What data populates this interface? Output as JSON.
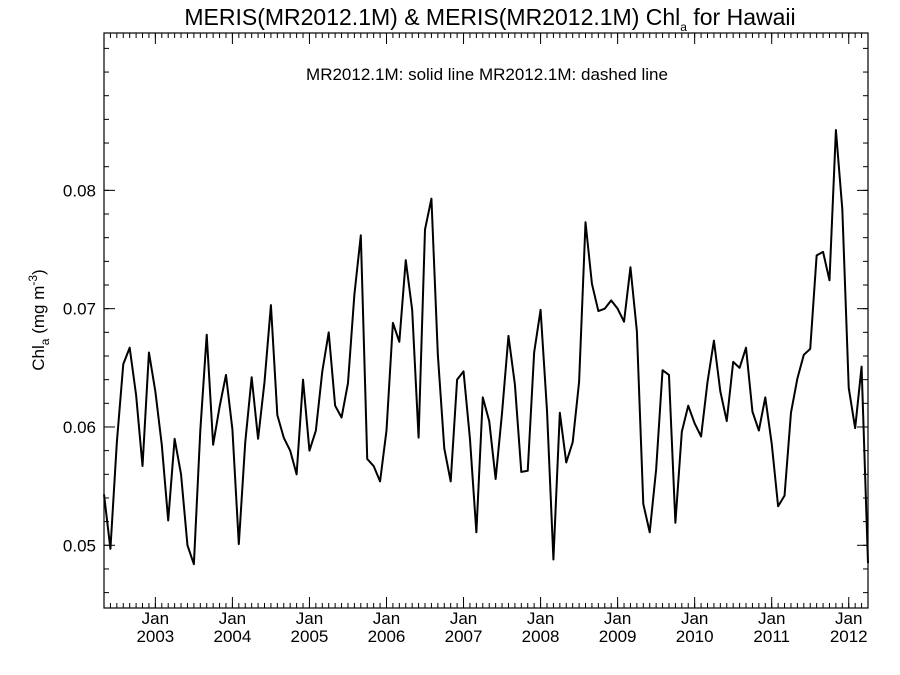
{
  "chart_data": {
    "type": "line",
    "title_main": "MERIS(MR2012.1M) & MERIS(MR2012.1M)  Chl",
    "title_sub": "a",
    "title_tail": " for Hawaii",
    "annotation": "MR2012.1M: solid line   MR2012.1M: dashed line",
    "ylabel_main": "Chl",
    "ylabel_sub": "a",
    "ylabel_units": " (mg m",
    "ylabel_exp": "-3",
    "ylabel_close": ")",
    "ylim": [
      0.0447,
      0.0933
    ],
    "xlim": [
      "2002-05",
      "2012-04"
    ],
    "y_ticks": [
      "0.05",
      "0.06",
      "0.07",
      "0.08"
    ],
    "x_ticks": [
      {
        "month": "Jan",
        "year": "2003"
      },
      {
        "month": "Jan",
        "year": "2004"
      },
      {
        "month": "Jan",
        "year": "2005"
      },
      {
        "month": "Jan",
        "year": "2006"
      },
      {
        "month": "Jan",
        "year": "2007"
      },
      {
        "month": "Jan",
        "year": "2008"
      },
      {
        "month": "Jan",
        "year": "2009"
      },
      {
        "month": "Jan",
        "year": "2010"
      },
      {
        "month": "Jan",
        "year": "2011"
      },
      {
        "month": "Jan",
        "year": "2012"
      }
    ],
    "grid": false,
    "series": [
      {
        "name": "MR2012.1M",
        "style": "solid",
        "color": "#000000",
        "start": "2002-05",
        "values": [
          0.0543,
          0.0497,
          0.0587,
          0.0653,
          0.0667,
          0.0627,
          0.0567,
          0.0663,
          0.063,
          0.0585,
          0.0521,
          0.059,
          0.056,
          0.05,
          0.0484,
          0.0597,
          0.0678,
          0.0585,
          0.0617,
          0.0644,
          0.0598,
          0.0501,
          0.0587,
          0.0642,
          0.059,
          0.0638,
          0.0703,
          0.061,
          0.0591,
          0.058,
          0.056,
          0.064,
          0.058,
          0.0597,
          0.0647,
          0.068,
          0.0618,
          0.0608,
          0.0637,
          0.0712,
          0.0762,
          0.0573,
          0.0567,
          0.0554,
          0.0597,
          0.0688,
          0.0672,
          0.0741,
          0.0699,
          0.0591,
          0.0767,
          0.0793,
          0.0661,
          0.0582,
          0.0554,
          0.064,
          0.0647,
          0.059,
          0.0511,
          0.0625,
          0.0605,
          0.0556,
          0.0612,
          0.0677,
          0.0636,
          0.0562,
          0.0563,
          0.0663,
          0.0699,
          0.0614,
          0.0488,
          0.0612,
          0.057,
          0.0587,
          0.0638,
          0.0773,
          0.0721,
          0.0698,
          0.07,
          0.0707,
          0.07,
          0.0689,
          0.0735,
          0.0681,
          0.0535,
          0.0511,
          0.0564,
          0.0648,
          0.0644,
          0.0519,
          0.0596,
          0.0618,
          0.0603,
          0.0592,
          0.0638,
          0.0673,
          0.063,
          0.0605,
          0.0655,
          0.065,
          0.0667,
          0.0613,
          0.0597,
          0.0625,
          0.0586,
          0.0533,
          0.0542,
          0.0612,
          0.0641,
          0.0661,
          0.0666,
          0.0745,
          0.0748,
          0.0724,
          0.0851,
          0.0784,
          0.0633,
          0.0599,
          0.0651,
          0.0485
        ]
      }
    ]
  }
}
